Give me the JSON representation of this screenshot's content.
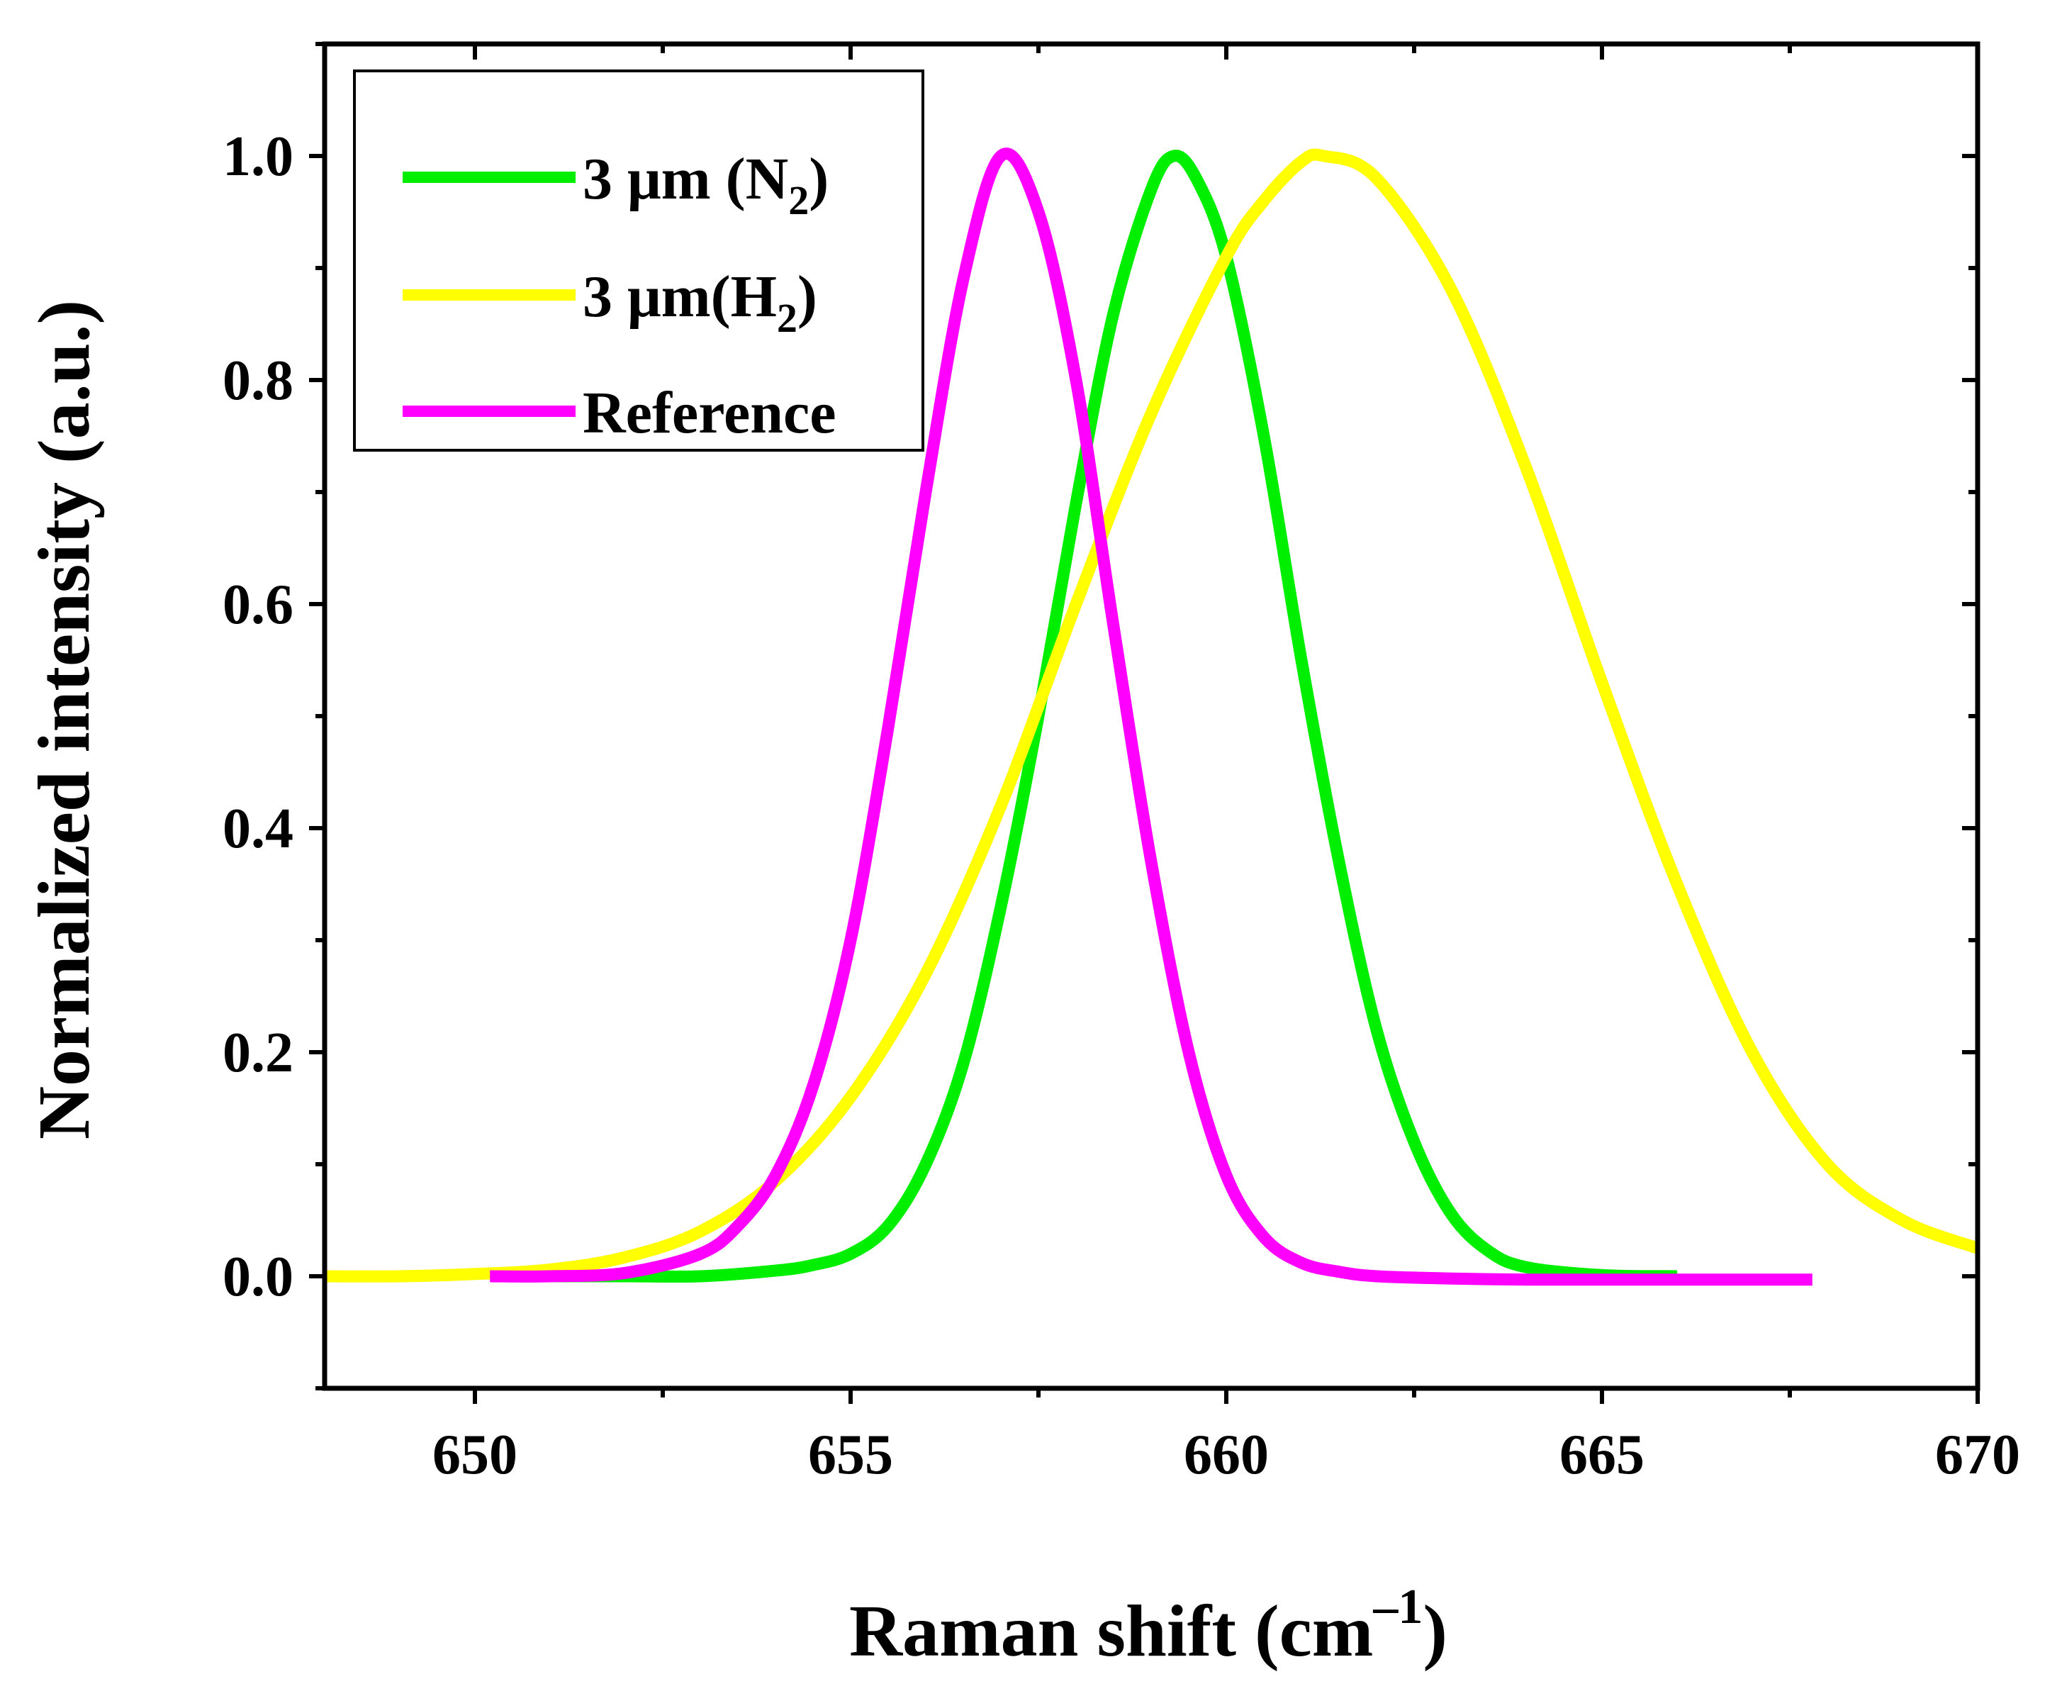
{
  "chart_data": {
    "type": "line",
    "title": "",
    "xlabel": {
      "base": "Raman shift (cm",
      "superscript": "–1",
      "close": ")"
    },
    "ylabel": "Normalized intensity (a.u.)",
    "xlim": [
      648,
      670
    ],
    "ylim": [
      -0.1,
      1.1
    ],
    "x_ticks": [
      650,
      655,
      660,
      665,
      670
    ],
    "y_ticks": [
      0.0,
      0.2,
      0.4,
      0.6,
      0.8,
      1.0
    ],
    "x_tick_labels": [
      "650",
      "655",
      "660",
      "665",
      "670"
    ],
    "y_tick_labels": [
      "0.0",
      "0.2",
      "0.4",
      "0.6",
      "0.8",
      "1.0"
    ],
    "legend_position": "top-left",
    "series": [
      {
        "name": "3 μm (N2)",
        "label_parts": {
          "main": "3 μm (N",
          "sub": "2",
          "close": ")"
        },
        "color": "#00ee00",
        "peak_x": 659.3,
        "peak_y": 1.0,
        "x_range": [
          651,
          666
        ],
        "x": [
          651,
          652,
          653,
          654,
          654.5,
          655,
          655.5,
          656,
          656.5,
          657,
          657.5,
          658,
          658.5,
          659,
          659.3,
          659.6,
          660,
          660.5,
          661,
          661.5,
          662,
          662.5,
          663,
          663.5,
          664,
          665,
          666
        ],
        "y": [
          0.0,
          0.0,
          0.0,
          0.005,
          0.01,
          0.02,
          0.045,
          0.1,
          0.19,
          0.33,
          0.5,
          0.69,
          0.86,
          0.97,
          1.0,
          0.98,
          0.91,
          0.75,
          0.55,
          0.37,
          0.22,
          0.12,
          0.055,
          0.022,
          0.008,
          0.001,
          0.0
        ]
      },
      {
        "name": "3 μm(H2)",
        "label_parts": {
          "main": "3 μm(H",
          "sub": "2",
          "close": ")"
        },
        "color": "#ffff00",
        "peak_x": 661.3,
        "peak_y": 1.0,
        "x_range": [
          648,
          670
        ],
        "x": [
          648,
          649,
          650,
          651,
          652,
          653,
          654,
          655,
          656,
          657,
          658,
          659,
          660,
          660.5,
          661,
          661.3,
          662,
          663,
          664,
          665,
          666,
          667,
          668,
          669,
          670
        ],
        "y": [
          0.0,
          0.0,
          0.002,
          0.006,
          0.017,
          0.04,
          0.085,
          0.16,
          0.27,
          0.42,
          0.6,
          0.77,
          0.91,
          0.96,
          0.995,
          1.0,
          0.98,
          0.88,
          0.72,
          0.53,
          0.35,
          0.2,
          0.1,
          0.05,
          0.025
        ]
      },
      {
        "name": "Reference",
        "label_parts": {
          "main": "Reference",
          "sub": "",
          "close": ""
        },
        "color": "#ff00ff",
        "peak_x": 657.0,
        "peak_y": 1.0,
        "x_range": [
          650.2,
          667.8
        ],
        "x": [
          650.2,
          651,
          652,
          653,
          653.5,
          654,
          654.5,
          655,
          655.5,
          656,
          656.5,
          657,
          657.5,
          658,
          658.5,
          659,
          659.5,
          660,
          660.5,
          661,
          661.5,
          662,
          663,
          664,
          665,
          666,
          667,
          667.8
        ],
        "y": [
          0.0,
          0.0,
          0.003,
          0.02,
          0.045,
          0.09,
          0.17,
          0.3,
          0.49,
          0.7,
          0.89,
          1.0,
          0.95,
          0.8,
          0.58,
          0.37,
          0.2,
          0.09,
          0.035,
          0.012,
          0.004,
          0.0,
          -0.002,
          -0.003,
          -0.003,
          -0.003,
          -0.003,
          -0.003
        ]
      }
    ]
  }
}
